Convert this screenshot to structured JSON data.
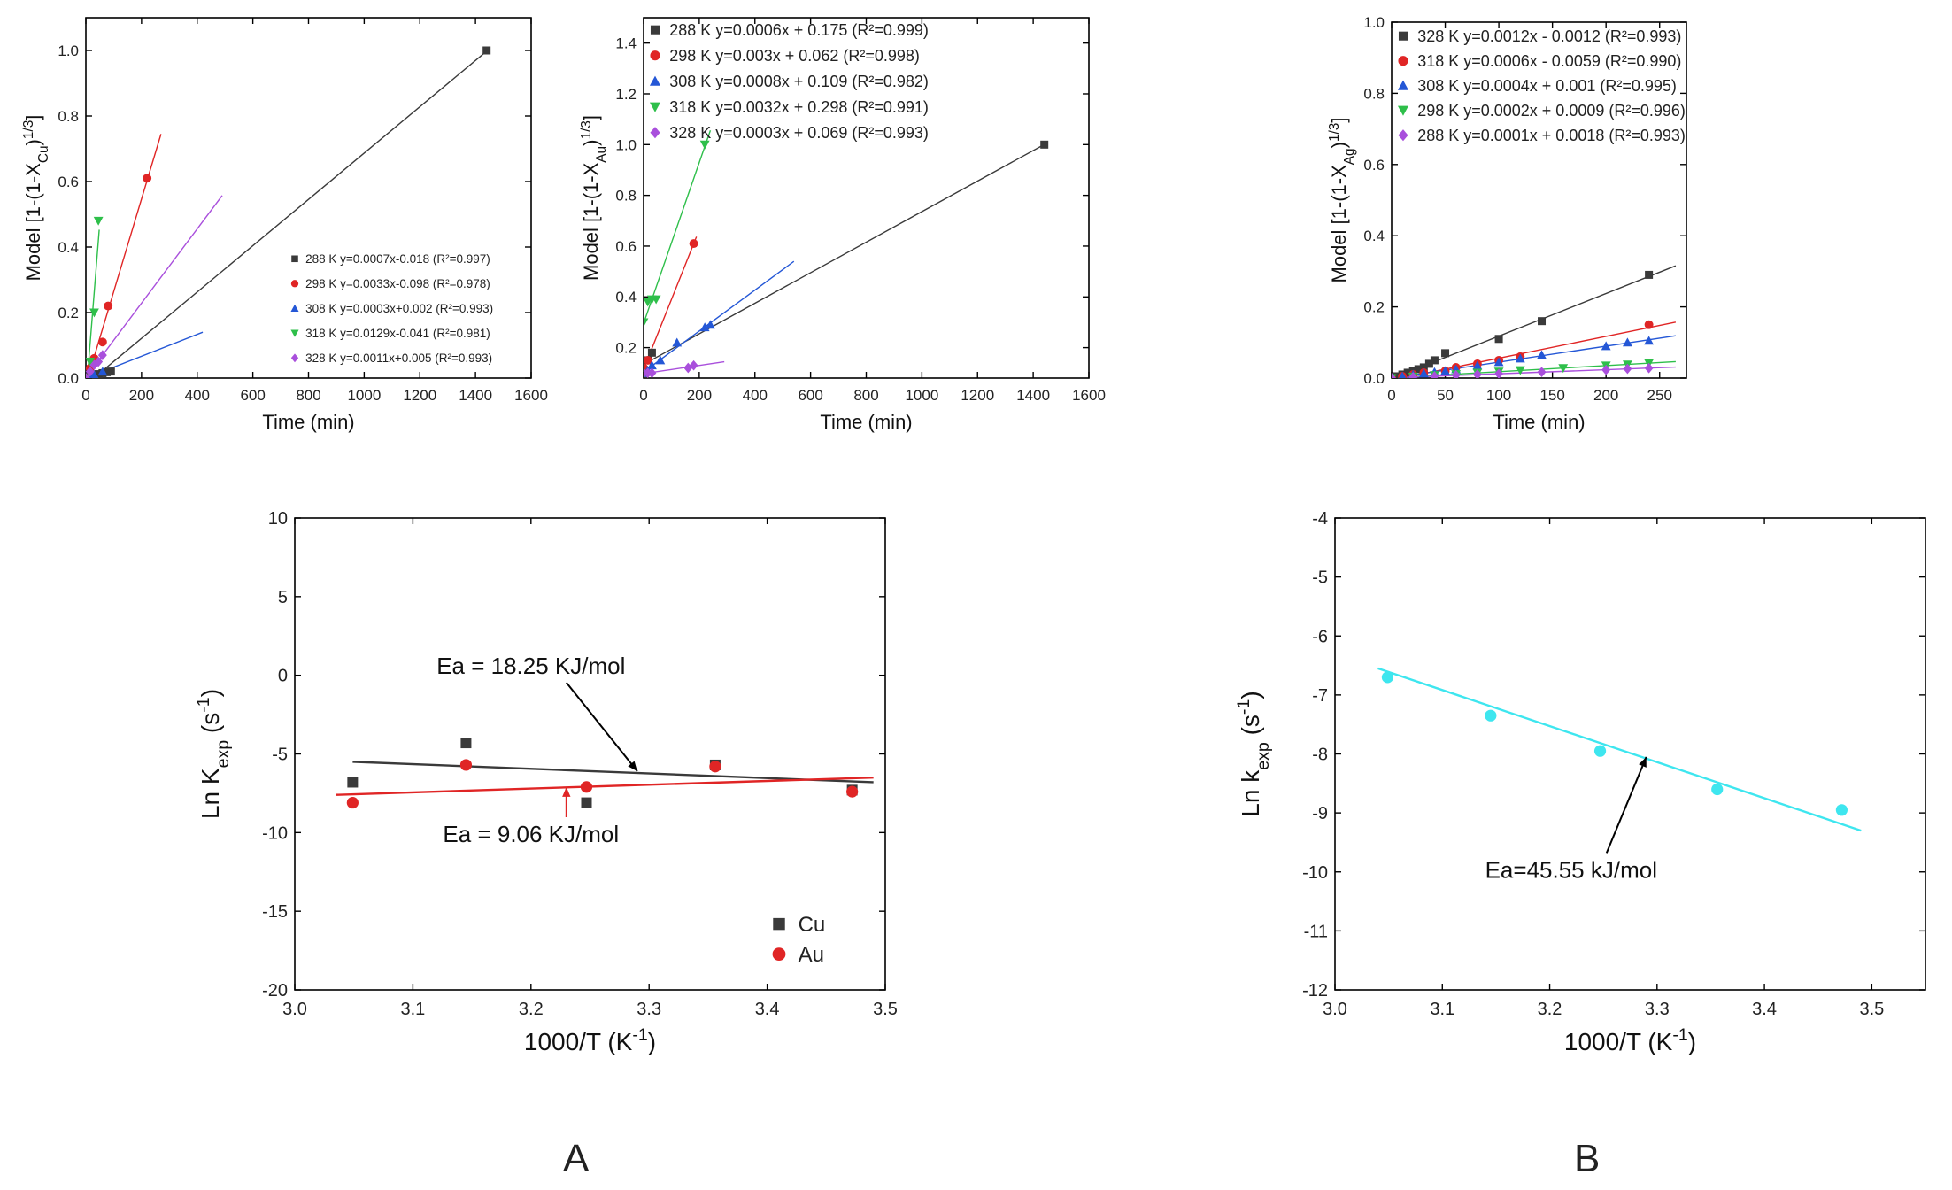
{
  "panel_labels": [
    "A",
    "B"
  ],
  "chart_data": [
    {
      "id": "cu_model",
      "type": "scatter",
      "xlabel": "Time (min)",
      "ylabel": "Model [1-(1-X_Cu)^1/3]",
      "ylabel_parts": {
        "pre": "Model [1-(1-X",
        "sub": "Cu",
        "mid": ")",
        "sup": "1/3",
        "post": "]"
      },
      "xlim": [
        0,
        1600
      ],
      "ylim": [
        0,
        1.1
      ],
      "xticks": [
        0,
        200,
        400,
        600,
        800,
        1000,
        1200,
        1400,
        1600
      ],
      "yticks": [
        0.0,
        0.2,
        0.4,
        0.6,
        0.8,
        1.0
      ],
      "legend_position": "bottom-right",
      "series": [
        {
          "name": "288 K",
          "legend": "288 K y=0.0007x-0.018 (R²=0.997)",
          "color": "#3a3a3a",
          "marker": "square",
          "x": [
            0,
            15,
            30,
            45,
            60,
            75,
            90,
            1440
          ],
          "y": [
            0.0,
            0.005,
            0.01,
            0.012,
            0.015,
            0.018,
            0.02,
            1.0
          ],
          "fit_x": [
            0,
            1440
          ]
        },
        {
          "name": "298 K",
          "legend": "298 K y=0.0033x-0.098 (R²=0.978)",
          "color": "#e02525",
          "marker": "circle",
          "x": [
            0,
            15,
            30,
            60,
            80,
            220
          ],
          "y": [
            0.0,
            0.03,
            0.06,
            0.11,
            0.22,
            0.61
          ],
          "fit_x": [
            30,
            270
          ]
        },
        {
          "name": "308 K",
          "legend": "308 K y=0.0003x+0.002 (R²=0.993)",
          "color": "#2457d6",
          "marker": "triangle-up",
          "x": [
            0,
            15,
            30,
            60
          ],
          "y": [
            0.0,
            0.005,
            0.01,
            0.02
          ],
          "fit_x": [
            0,
            420
          ]
        },
        {
          "name": "318 K",
          "legend": "318 K y=0.0129x-0.041 (R²=0.981)",
          "color": "#2ebf4a",
          "marker": "triangle-down",
          "x": [
            0,
            15,
            30,
            45
          ],
          "y": [
            0.0,
            0.05,
            0.2,
            0.48
          ],
          "fit_x": [
            3,
            48
          ]
        },
        {
          "name": "328 K",
          "legend": "328 K y=0.0011x+0.005 (R²=0.993)",
          "color": "#a94fdc",
          "marker": "diamond",
          "x": [
            0,
            15,
            30,
            45,
            60
          ],
          "y": [
            0.0,
            0.02,
            0.04,
            0.05,
            0.07
          ],
          "fit_x": [
            0,
            490
          ]
        }
      ]
    },
    {
      "id": "au_model",
      "type": "scatter",
      "xlabel": "Time (min)",
      "ylabel": "Model [1-(1-X_Au)^1/3]",
      "ylabel_parts": {
        "pre": "Model [1-(1-X",
        "sub": "Au",
        "mid": ")",
        "sup": "1/3",
        "post": "]"
      },
      "xlim": [
        0,
        1600
      ],
      "ylim": [
        0.08,
        1.5
      ],
      "xticks": [
        0,
        200,
        400,
        600,
        800,
        1000,
        1200,
        1400,
        1600
      ],
      "yticks": [
        0.2,
        0.4,
        0.6,
        0.8,
        1.0,
        1.2,
        1.4
      ],
      "legend_position": "top-right",
      "series": [
        {
          "name": "288 K",
          "legend": "288 K y=0.0006x + 0.175 (R²=0.999)",
          "color": "#3a3a3a",
          "marker": "square",
          "x": [
            0,
            15,
            30,
            1440
          ],
          "y": [
            0.1,
            0.15,
            0.18,
            1.0
          ],
          "fit_x": [
            0,
            1440
          ]
        },
        {
          "name": "298 K",
          "legend": "298 K y=0.003x + 0.062 (R²=0.998)",
          "color": "#e02525",
          "marker": "circle",
          "x": [
            0,
            15,
            180
          ],
          "y": [
            0.12,
            0.15,
            0.61
          ],
          "fit_x": [
            0,
            190
          ]
        },
        {
          "name": "308 K",
          "legend": "308 K y=0.0008x + 0.109 (R²=0.982)",
          "color": "#2457d6",
          "marker": "triangle-up",
          "x": [
            0,
            15,
            30,
            60,
            120,
            220,
            240
          ],
          "y": [
            0.1,
            0.11,
            0.13,
            0.15,
            0.22,
            0.28,
            0.29
          ],
          "fit_x": [
            0,
            540
          ]
        },
        {
          "name": "318 K",
          "legend": "318 K y=0.0032x + 0.298 (R²=0.991)",
          "color": "#2ebf4a",
          "marker": "triangle-down",
          "x": [
            0,
            15,
            30,
            45,
            220
          ],
          "y": [
            0.3,
            0.38,
            0.39,
            0.39,
            1.0
          ],
          "fit_x": [
            0,
            240
          ]
        },
        {
          "name": "328 K",
          "legend": "328 K y=0.0003x + 0.069 (R²=0.993)",
          "color": "#a94fdc",
          "marker": "diamond",
          "x": [
            0,
            15,
            30,
            160,
            180
          ],
          "y": [
            0.1,
            0.1,
            0.1,
            0.12,
            0.13
          ],
          "fit_x": [
            0,
            290
          ]
        }
      ]
    },
    {
      "id": "ag_model",
      "type": "scatter",
      "xlabel": "Time (min)",
      "ylabel": "Model [1-(1-X_Ag)^1/3]",
      "ylabel_parts": {
        "pre": "Model [1-(1-X",
        "sub": "Ag",
        "mid": ")",
        "sup": "1/3",
        "post": "]"
      },
      "xlim": [
        0,
        275
      ],
      "ylim": [
        0,
        1.0
      ],
      "xticks": [
        0,
        50,
        100,
        150,
        200,
        250
      ],
      "yticks": [
        0.0,
        0.2,
        0.4,
        0.6,
        0.8,
        1.0
      ],
      "legend_position": "top-left",
      "series": [
        {
          "name": "328 K",
          "legend": "328 K y=0.0012x - 0.0012 (R²=0.993)",
          "color": "#3a3a3a",
          "marker": "square",
          "x": [
            0,
            5,
            10,
            15,
            20,
            25,
            30,
            35,
            40,
            50,
            100,
            140,
            240
          ],
          "y": [
            0.0,
            0.005,
            0.01,
            0.015,
            0.02,
            0.025,
            0.03,
            0.04,
            0.05,
            0.07,
            0.11,
            0.16,
            0.29
          ],
          "fit_x": [
            0,
            265
          ]
        },
        {
          "name": "318 K",
          "legend": "318 K y=0.0006x - 0.0059 (R²=0.990)",
          "color": "#e02525",
          "marker": "circle",
          "x": [
            0,
            10,
            20,
            30,
            50,
            60,
            80,
            100,
            120,
            240
          ],
          "y": [
            0.0,
            0.005,
            0.01,
            0.015,
            0.02,
            0.03,
            0.04,
            0.05,
            0.06,
            0.15
          ],
          "fit_x": [
            0,
            265
          ]
        },
        {
          "name": "308 K",
          "legend": "308 K y=0.0004x + 0.001 (R²=0.995)",
          "color": "#2457d6",
          "marker": "triangle-up",
          "x": [
            0,
            10,
            20,
            30,
            40,
            50,
            60,
            80,
            100,
            120,
            140,
            200,
            220,
            240
          ],
          "y": [
            0.0,
            0.005,
            0.01,
            0.013,
            0.017,
            0.02,
            0.025,
            0.035,
            0.045,
            0.055,
            0.065,
            0.09,
            0.1,
            0.105
          ],
          "fit_x": [
            0,
            265
          ]
        },
        {
          "name": "298 K",
          "legend": "298 K y=0.0002x + 0.0009 (R²=0.996)",
          "color": "#2ebf4a",
          "marker": "triangle-down",
          "x": [
            0,
            20,
            40,
            60,
            80,
            100,
            120,
            160,
            200,
            220,
            240
          ],
          "y": [
            0.0,
            0.004,
            0.008,
            0.011,
            0.015,
            0.018,
            0.022,
            0.028,
            0.035,
            0.038,
            0.042
          ],
          "fit_x": [
            0,
            265
          ]
        },
        {
          "name": "288 K",
          "legend": "288 K y=0.0001x + 0.0018 (R²=0.993)",
          "color": "#a94fdc",
          "marker": "diamond",
          "x": [
            0,
            20,
            40,
            60,
            80,
            100,
            140,
            200,
            220,
            240
          ],
          "y": [
            0.0,
            0.003,
            0.005,
            0.008,
            0.01,
            0.012,
            0.017,
            0.023,
            0.026,
            0.028
          ],
          "fit_x": [
            0,
            265
          ]
        }
      ]
    },
    {
      "id": "arrhenius_cu_au",
      "type": "scatter",
      "xlabel": "1000/T (K^-1)",
      "xlabel_parts": {
        "pre": "1000/T (K",
        "sup": "-1",
        "post": ")"
      },
      "ylabel": "Ln K_exp (s^-1)",
      "ylabel_parts": {
        "pre": "Ln K",
        "sub": "exp",
        "mid": " (s",
        "sup": "-1",
        "post": ")"
      },
      "xlim": [
        3.0,
        3.5
      ],
      "ylim": [
        -20,
        10
      ],
      "xticks": [
        3.0,
        3.1,
        3.2,
        3.3,
        3.4,
        3.5
      ],
      "yticks": [
        -20,
        -15,
        -10,
        -5,
        0,
        5,
        10
      ],
      "legend_position": "bottom-right",
      "series": [
        {
          "name": "Cu",
          "legend": "Cu",
          "color": "#3a3a3a",
          "marker": "square",
          "x": [
            3.049,
            3.145,
            3.247,
            3.356,
            3.472
          ],
          "y": [
            -6.8,
            -4.3,
            -8.1,
            -5.7,
            -7.3
          ],
          "fit_x": [
            3.049,
            3.49
          ],
          "fit_y": [
            -5.5,
            -6.8
          ]
        },
        {
          "name": "Au",
          "legend": "Au",
          "color": "#e02525",
          "marker": "circle",
          "x": [
            3.049,
            3.145,
            3.247,
            3.356,
            3.472
          ],
          "y": [
            -8.1,
            -5.7,
            -7.1,
            -5.8,
            -7.4
          ],
          "fit_x": [
            3.035,
            3.49
          ],
          "fit_y": [
            -7.6,
            -6.5
          ]
        }
      ],
      "annotations": [
        {
          "text": "Ea = 18.25 KJ/mol",
          "color": "#000000",
          "arrow_to": [
            3.29,
            -6.1
          ],
          "text_at": [
            3.2,
            0.1
          ]
        },
        {
          "text": "Ea = 9.06 KJ/mol",
          "color": "#e02525",
          "arrow_to": [
            3.23,
            -7.1
          ],
          "text_at": [
            3.2,
            -10.6
          ]
        }
      ]
    },
    {
      "id": "arrhenius_ag",
      "type": "scatter",
      "xlabel": "1000/T (K^-1)",
      "xlabel_parts": {
        "pre": "1000/T (K",
        "sup": "-1",
        "post": ")"
      },
      "ylabel": "Ln k_exp (s^-1)",
      "ylabel_parts": {
        "pre": "Ln k",
        "sub": "exp",
        "mid": " (s",
        "sup": "-1",
        "post": ")"
      },
      "xlim": [
        3.0,
        3.55
      ],
      "ylim": [
        -12,
        -4
      ],
      "xticks": [
        3.0,
        3.1,
        3.2,
        3.3,
        3.4,
        3.5
      ],
      "yticks": [
        -12,
        -11,
        -10,
        -9,
        -8,
        -7,
        -6,
        -5,
        -4
      ],
      "series": [
        {
          "name": "Ag",
          "legend": "",
          "color": "#3ee6ef",
          "marker": "circle",
          "x": [
            3.049,
            3.145,
            3.247,
            3.356,
            3.472
          ],
          "y": [
            -6.7,
            -7.35,
            -7.95,
            -8.6,
            -8.95
          ],
          "fit_x": [
            3.04,
            3.49
          ],
          "fit_y": [
            -6.55,
            -9.3
          ]
        }
      ],
      "annotations": [
        {
          "text": "Ea=45.55 kJ/mol",
          "color": "#000000",
          "arrow_to": [
            3.29,
            -8.05
          ],
          "text_at": [
            3.22,
            -10.1
          ]
        }
      ]
    }
  ]
}
